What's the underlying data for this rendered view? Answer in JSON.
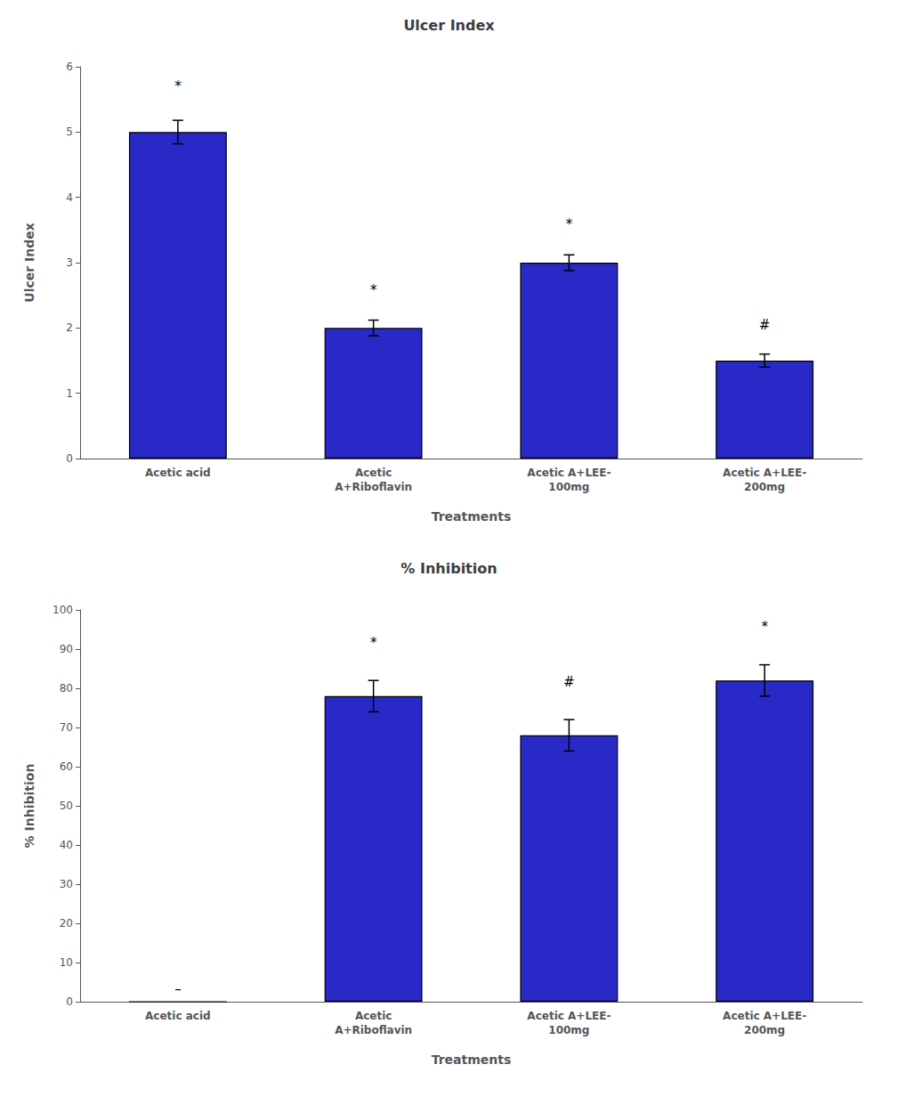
{
  "chart_data": [
    {
      "type": "bar",
      "title": "Ulcer Index",
      "xlabel": "Treatments",
      "ylabel": "Ulcer Index",
      "categories": [
        "Acetic acid",
        "Acetic\nA+Riboflavin",
        "Acetic A+LEE-\n100mg",
        "Acetic A+LEE-\n200mg"
      ],
      "values": [
        5.0,
        2.0,
        3.0,
        1.5
      ],
      "errors": [
        0.18,
        0.12,
        0.12,
        0.1
      ],
      "annotations": [
        {
          "category": "Acetic acid",
          "text": "*"
        },
        {
          "category": "Acetic\nA+Riboflavin",
          "text": "*"
        },
        {
          "category": "Acetic A+LEE-\n100mg",
          "text": "*"
        },
        {
          "category": "Acetic A+LEE-\n200mg",
          "text": "#"
        }
      ],
      "ylim": [
        0,
        6
      ],
      "yticks": [
        0,
        1,
        2,
        3,
        4,
        5,
        6
      ],
      "color": "#2929c8",
      "grid": false
    },
    {
      "type": "bar",
      "title": "% Inhibition",
      "xlabel": "Treatments",
      "ylabel": "% Inhibition",
      "categories": [
        "Acetic acid",
        "Acetic\nA+Riboflavin",
        "Acetic A+LEE-\n100mg",
        "Acetic A+LEE-\n200mg"
      ],
      "values": [
        0.0,
        78.0,
        68.0,
        82.0
      ],
      "errors": [
        0.0,
        4.0,
        4.0,
        4.0
      ],
      "annotations": [
        {
          "category": "Acetic acid",
          "text": "–",
          "y": 1.5
        },
        {
          "category": "Acetic\nA+Riboflavin",
          "text": "*"
        },
        {
          "category": "Acetic A+LEE-\n100mg",
          "text": "#"
        },
        {
          "category": "Acetic A+LEE-\n200mg",
          "text": "*"
        }
      ],
      "ylim": [
        0,
        100
      ],
      "yticks": [
        0,
        10,
        20,
        30,
        40,
        50,
        60,
        70,
        80,
        90,
        100
      ],
      "color": "#2929c8",
      "grid": false
    }
  ]
}
